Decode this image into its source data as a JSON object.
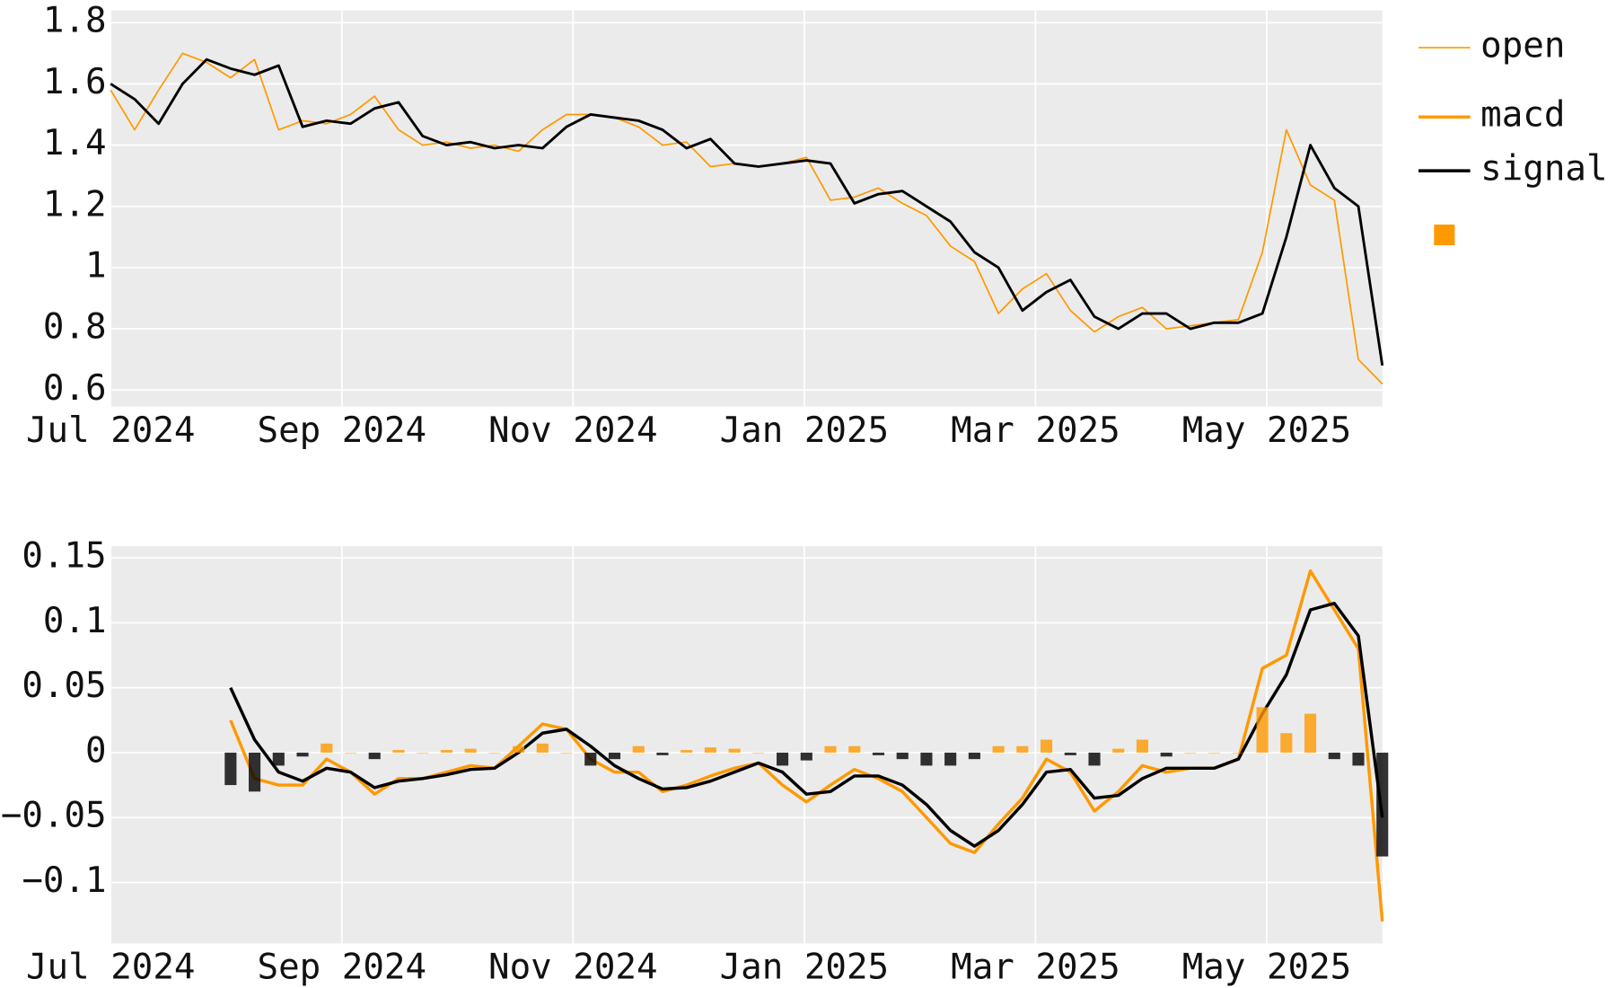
{
  "chart_data": [
    {
      "type": "line",
      "xlim": [
        "2024-07",
        "2025-06"
      ],
      "xticks": [
        {
          "value": "2024-07",
          "label": "Jul 2024"
        },
        {
          "value": "2024-09",
          "label": "Sep 2024"
        },
        {
          "value": "2024-11",
          "label": "Nov 2024"
        },
        {
          "value": "2025-01",
          "label": "Jan 2025"
        },
        {
          "value": "2025-03",
          "label": "Mar 2025"
        },
        {
          "value": "2025-05",
          "label": "May 2025"
        }
      ],
      "ylim": [
        0.546,
        1.84
      ],
      "yticks": [
        0.6,
        0.8,
        1,
        1.2,
        1.4,
        1.6,
        1.8
      ],
      "grid": true,
      "legend": "right",
      "series": [
        {
          "name": "open",
          "color": "#ff9900",
          "line_width": 1.5,
          "values": [
            1.58,
            1.45,
            1.58,
            1.7,
            1.67,
            1.62,
            1.68,
            1.45,
            1.48,
            1.47,
            1.5,
            1.56,
            1.45,
            1.4,
            1.41,
            1.39,
            1.4,
            1.38,
            1.45,
            1.5,
            1.5,
            1.49,
            1.46,
            1.4,
            1.41,
            1.33,
            1.34,
            1.33,
            1.34,
            1.36,
            1.22,
            1.23,
            1.26,
            1.21,
            1.17,
            1.07,
            1.02,
            0.85,
            0.93,
            0.98,
            0.86,
            0.79,
            0.84,
            0.87,
            0.8,
            0.81,
            0.82,
            0.83,
            1.05,
            1.45,
            1.27,
            1.22,
            0.7,
            0.62
          ]
        },
        {
          "color": "#000000",
          "values": [
            1.6,
            1.55,
            1.47,
            1.6,
            1.68,
            1.65,
            1.63,
            1.66,
            1.46,
            1.48,
            1.47,
            1.52,
            1.54,
            1.43,
            1.4,
            1.41,
            1.39,
            1.4,
            1.39,
            1.46,
            1.5,
            1.49,
            1.48,
            1.45,
            1.39,
            1.42,
            1.34,
            1.33,
            1.34,
            1.35,
            1.34,
            1.21,
            1.24,
            1.25,
            1.2,
            1.15,
            1.05,
            1.0,
            0.86,
            0.92,
            0.96,
            0.84,
            0.8,
            0.85,
            0.85,
            0.8,
            0.82,
            0.82,
            0.85,
            1.1,
            1.4,
            1.26,
            1.2,
            0.68
          ]
        }
      ]
    },
    {
      "type": "line",
      "xlim": [
        "2024-07",
        "2025-06"
      ],
      "xticks": [
        {
          "value": "2024-07",
          "label": "Jul 2024"
        },
        {
          "value": "2024-09",
          "label": "Sep 2024"
        },
        {
          "value": "2024-11",
          "label": "Nov 2024"
        },
        {
          "value": "2025-01",
          "label": "Jan 2025"
        },
        {
          "value": "2025-03",
          "label": "Mar 2025"
        },
        {
          "value": "2025-05",
          "label": "May 2025"
        }
      ],
      "ylim": [
        -0.147,
        0.159
      ],
      "yticks": [
        {
          "value": -0.1,
          "label": "−0.1"
        },
        {
          "value": -0.05,
          "label": "−0.05"
        },
        0,
        0.05,
        0.1,
        0.15
      ],
      "grid": true,
      "series": [
        {
          "name": "macd",
          "color": "#ff9900",
          "line_width": 3,
          "values": [
            null,
            null,
            null,
            null,
            null,
            0.025,
            -0.02,
            -0.025,
            -0.025,
            -0.005,
            -0.015,
            -0.032,
            -0.02,
            -0.02,
            -0.015,
            -0.01,
            -0.012,
            0.005,
            0.022,
            0.018,
            -0.005,
            -0.015,
            -0.015,
            -0.03,
            -0.025,
            -0.018,
            -0.012,
            -0.008,
            -0.025,
            -0.038,
            -0.025,
            -0.013,
            -0.02,
            -0.03,
            -0.05,
            -0.07,
            -0.077,
            -0.055,
            -0.035,
            -0.005,
            -0.015,
            -0.045,
            -0.03,
            -0.01,
            -0.015,
            -0.012,
            -0.012,
            -0.005,
            0.065,
            0.075,
            0.14,
            0.11,
            0.08,
            -0.13
          ]
        },
        {
          "name": "signal",
          "color": "#000000",
          "line_width": 3,
          "values": [
            null,
            null,
            null,
            null,
            null,
            0.05,
            0.01,
            -0.015,
            -0.022,
            -0.012,
            -0.015,
            -0.027,
            -0.022,
            -0.02,
            -0.017,
            -0.013,
            -0.012,
            0,
            0.015,
            0.018,
            0.005,
            -0.01,
            -0.02,
            -0.028,
            -0.027,
            -0.022,
            -0.015,
            -0.008,
            -0.015,
            -0.032,
            -0.03,
            -0.018,
            -0.018,
            -0.025,
            -0.04,
            -0.06,
            -0.072,
            -0.06,
            -0.04,
            -0.015,
            -0.013,
            -0.035,
            -0.033,
            -0.02,
            -0.012,
            -0.012,
            -0.012,
            -0.005,
            0.03,
            0.06,
            0.11,
            0.115,
            0.09,
            -0.05
          ]
        },
        {
          "type": "bar",
          "color": "#ff9900",
          "negative_color": "#000000",
          "values": [
            null,
            null,
            null,
            null,
            null,
            -0.025,
            -0.03,
            -0.01,
            -0.003,
            0.007,
            0,
            -0.005,
            0.002,
            0,
            0.002,
            0.003,
            0,
            0.005,
            0.007,
            0,
            -0.01,
            -0.005,
            0.005,
            -0.002,
            0.002,
            0.004,
            0.003,
            0,
            -0.01,
            -0.006,
            0.005,
            0.005,
            -0.002,
            -0.005,
            -0.01,
            -0.01,
            -0.005,
            0.005,
            0.005,
            0.01,
            -0.002,
            -0.01,
            0.003,
            0.01,
            -0.003,
            0,
            0,
            0,
            0.035,
            0.015,
            0.03,
            -0.005,
            -0.01,
            -0.08
          ]
        }
      ]
    }
  ]
}
